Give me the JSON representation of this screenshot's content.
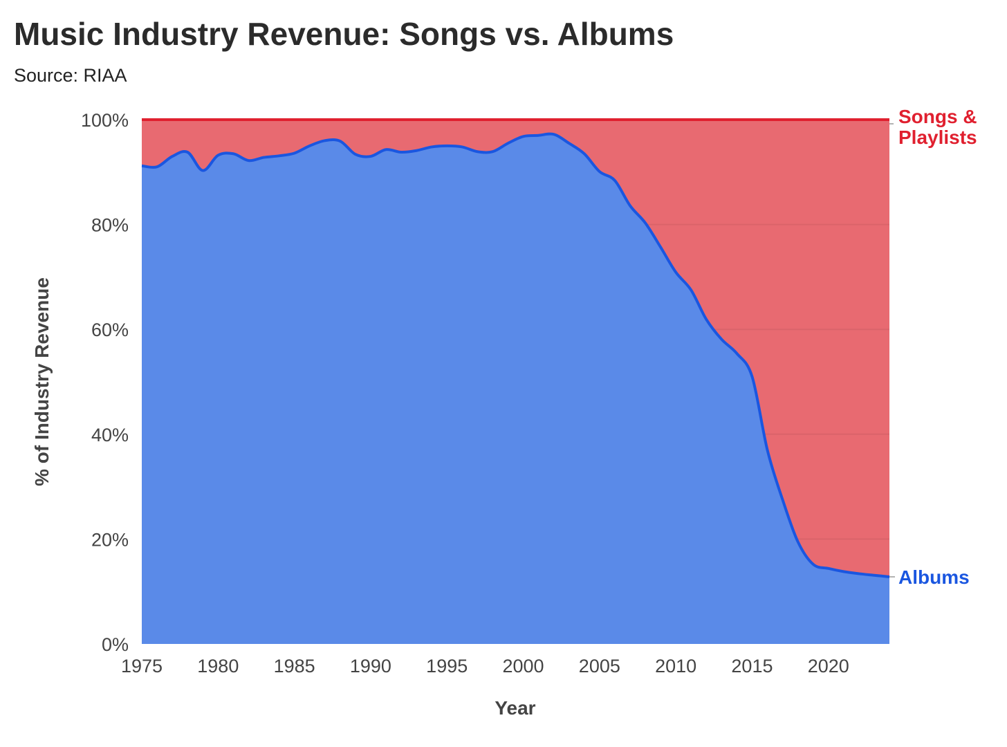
{
  "title": "Music Industry Revenue: Songs vs. Albums",
  "subtitle": "Source: RIAA",
  "chart_data": {
    "type": "area",
    "stacked": true,
    "x": [
      1975,
      1976,
      1977,
      1978,
      1979,
      1980,
      1981,
      1982,
      1983,
      1984,
      1985,
      1986,
      1987,
      1988,
      1989,
      1990,
      1991,
      1992,
      1993,
      1994,
      1995,
      1996,
      1997,
      1998,
      1999,
      2000,
      2001,
      2002,
      2003,
      2004,
      2005,
      2006,
      2007,
      2008,
      2009,
      2010,
      2011,
      2012,
      2013,
      2014,
      2015,
      2016,
      2017,
      2018,
      2019,
      2020,
      2021,
      2022,
      2023,
      2024
    ],
    "series": [
      {
        "name": "Albums",
        "color": "#1a56e0",
        "fill": "#5a8ae8",
        "values": [
          91.2,
          91.0,
          93.0,
          93.8,
          90.3,
          93.2,
          93.5,
          92.2,
          92.8,
          93.1,
          93.6,
          95.0,
          96.0,
          95.9,
          93.4,
          93.0,
          94.3,
          93.8,
          94.1,
          94.8,
          95.0,
          94.8,
          93.9,
          93.9,
          95.5,
          96.8,
          97.0,
          97.2,
          95.5,
          93.5,
          90.1,
          88.4,
          83.6,
          80.3,
          75.7,
          70.9,
          67.5,
          61.9,
          58.1,
          55.4,
          51.0,
          37.0,
          27.5,
          19.5,
          15.2,
          14.4,
          13.8,
          13.4,
          13.1,
          12.8
        ]
      },
      {
        "name": "Songs & Playlists",
        "color": "#e0202f",
        "fill": "#e86a71",
        "values": [
          8.8,
          9.0,
          7.0,
          6.2,
          9.7,
          6.8,
          6.5,
          7.8,
          7.2,
          6.9,
          6.4,
          5.0,
          4.0,
          4.1,
          6.6,
          7.0,
          5.7,
          6.2,
          5.9,
          5.2,
          5.0,
          5.2,
          6.1,
          6.1,
          4.5,
          3.2,
          3.0,
          2.8,
          4.5,
          6.5,
          9.9,
          11.6,
          16.4,
          19.7,
          24.3,
          29.1,
          32.5,
          38.1,
          41.9,
          44.6,
          49.0,
          63.0,
          72.5,
          80.5,
          84.8,
          85.6,
          86.2,
          86.6,
          86.9,
          87.2
        ]
      }
    ],
    "xlabel": "Year",
    "ylabel": "% of Industry Revenue",
    "xlim": [
      1975,
      2024
    ],
    "ylim": [
      0,
      100
    ],
    "x_ticks": [
      "1975",
      "1980",
      "1985",
      "1990",
      "1995",
      "2000",
      "2005",
      "2010",
      "2015",
      "2020"
    ],
    "y_ticks": [
      "0%",
      "20%",
      "40%",
      "60%",
      "80%",
      "100%"
    ],
    "grid": true,
    "legend": "direct labels at right end of series",
    "label_albums": "Albums",
    "label_songs_line1": "Songs &",
    "label_songs_line2": "Playlists"
  }
}
